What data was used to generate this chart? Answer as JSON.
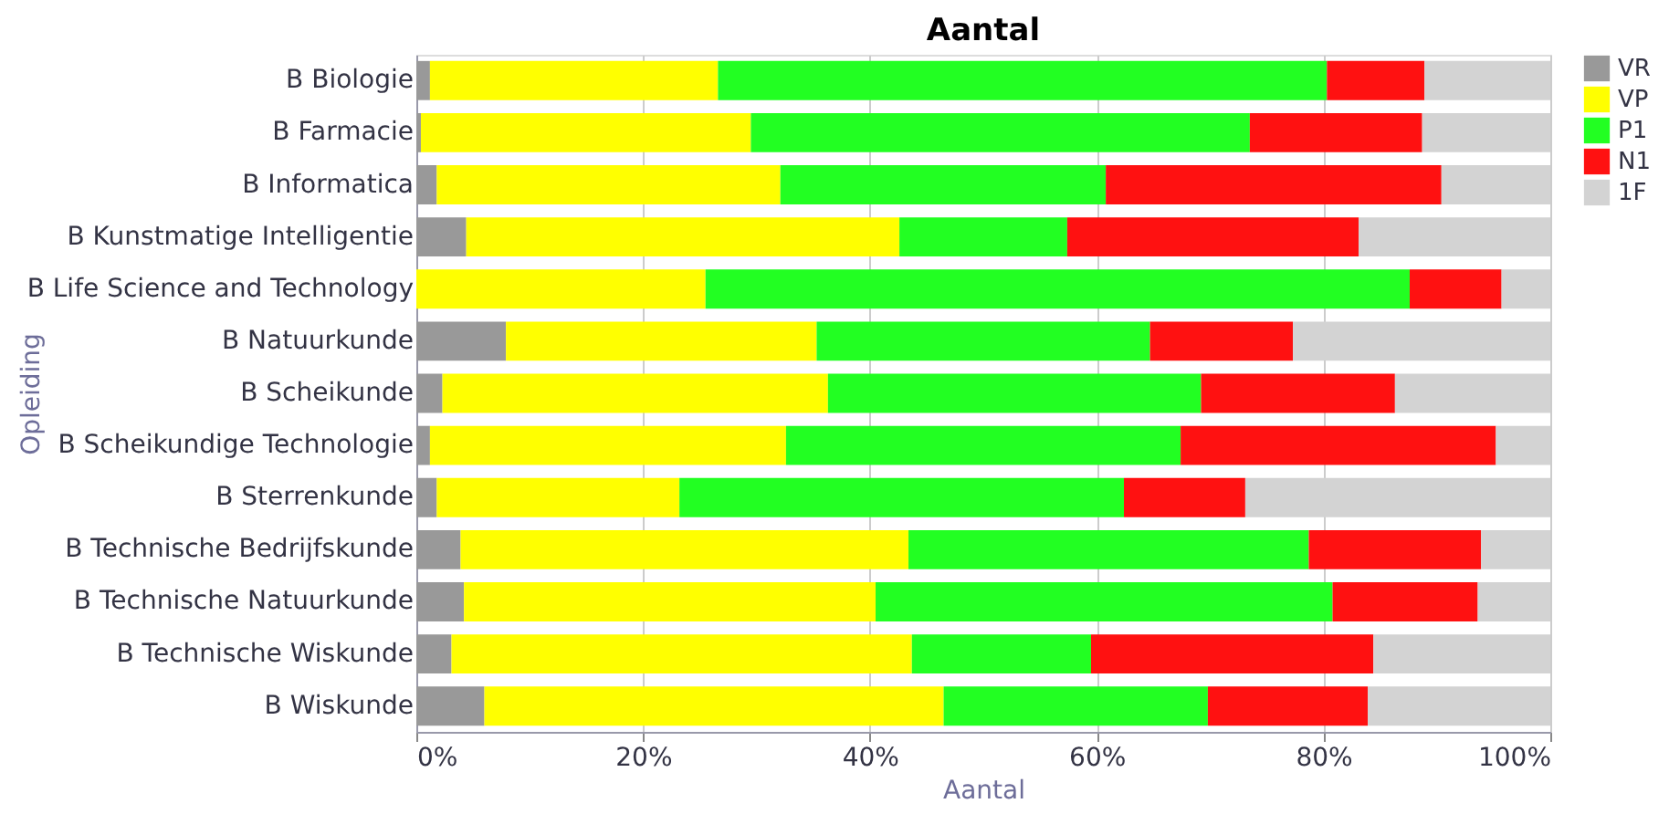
{
  "chart_data": {
    "type": "bar",
    "orientation": "horizontal",
    "stacked": true,
    "title": "Aantal",
    "xlabel": "Aantal",
    "ylabel": "Opleiding",
    "categories": [
      "B Biologie",
      "B Farmacie",
      "B Informatica",
      "B Kunstmatige Intelligentie",
      "B Life Science and Technology",
      "B Natuurkunde",
      "B Scheikunde",
      "B Scheikundige Technologie",
      "B Sterrenkunde",
      "B Technische Bedrijfskunde",
      "B Technische Natuurkunde",
      "B Technische Wiskunde",
      "B Wiskunde"
    ],
    "series": [
      {
        "name": "VR",
        "color": "#999999",
        "values": [
          1.2,
          0.4,
          1.8,
          4.4,
          0,
          7.9,
          2.3,
          1.2,
          1.8,
          3.9,
          4.2,
          3.1,
          6.0
        ]
      },
      {
        "name": "VP",
        "color": "#ffff00",
        "values": [
          25.4,
          29.1,
          30.3,
          38.2,
          25.5,
          27.4,
          34.0,
          31.4,
          21.4,
          39.5,
          36.3,
          40.6,
          40.5
        ]
      },
      {
        "name": "P1",
        "color": "#22ff22",
        "values": [
          53.7,
          44.0,
          28.7,
          14.8,
          62.1,
          29.4,
          32.9,
          34.8,
          39.2,
          35.3,
          40.3,
          15.8,
          23.3
        ]
      },
      {
        "name": "N1",
        "color": "#ff1111",
        "values": [
          8.6,
          15.2,
          29.6,
          25.7,
          8.1,
          12.6,
          17.1,
          27.8,
          10.7,
          15.2,
          12.8,
          24.9,
          14.1
        ]
      },
      {
        "name": "1F",
        "color": "#d3d3d3",
        "values": [
          11.1,
          11.3,
          9.6,
          16.9,
          4.3,
          22.7,
          13.7,
          4.8,
          26.9,
          6.1,
          6.4,
          15.6,
          16.1
        ]
      }
    ],
    "xlim": [
      0,
      100
    ],
    "xticks": [
      {
        "value": 0,
        "label": "0%"
      },
      {
        "value": 20,
        "label": "20%"
      },
      {
        "value": 40,
        "label": "40%"
      },
      {
        "value": 60,
        "label": "60%"
      },
      {
        "value": 80,
        "label": "80%"
      },
      {
        "value": 100,
        "label": "100%"
      }
    ],
    "grid": "x",
    "legend": "right"
  }
}
